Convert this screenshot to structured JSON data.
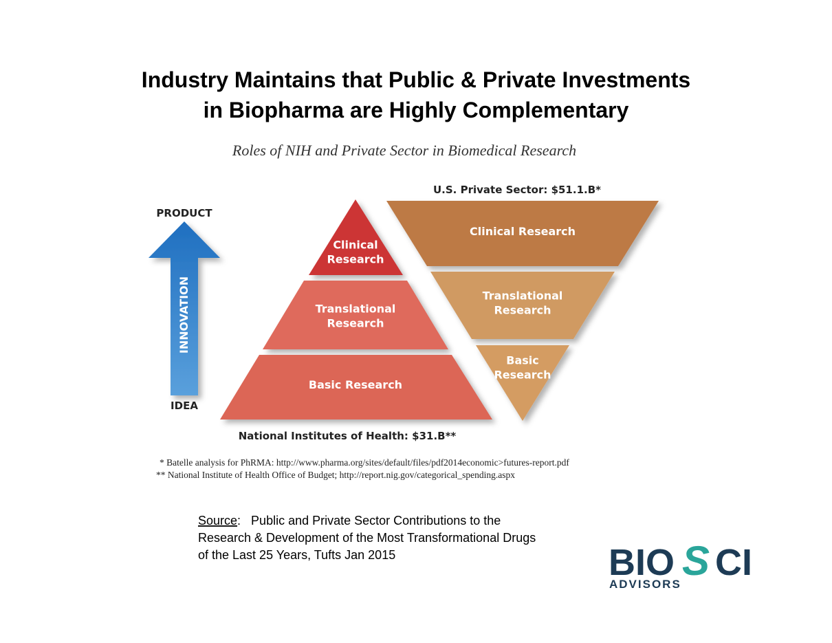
{
  "title_lines": [
    "Industry Maintains that Public & Private Investments",
    "in Biopharma are Highly Complementary"
  ],
  "figure": {
    "subtitle": "Roles of NIH and Private Sector in Biomedical Research",
    "arrow": {
      "top": "PRODUCT",
      "middle": "INNOVATION",
      "bottom": "IDEA"
    },
    "nih": {
      "caption": "National Institutes of Health: $31.B**",
      "layers": [
        [
          "Clinical",
          "Research"
        ],
        [
          "Translational",
          "Research"
        ],
        [
          "Basic Research"
        ]
      ]
    },
    "private": {
      "caption": "U.S. Private Sector: $51.1.B*",
      "layers": [
        [
          "Clinical Research"
        ],
        [
          "Translational",
          "Research"
        ],
        [
          "Basic",
          "Research"
        ]
      ]
    },
    "footnotes": [
      "* Batelle analysis for PhRMA: http://www.pharma.org/sites/default/files/pdf2014economic>futures-report.pdf",
      "** National Institute of Health Office of Budget; http://report.nig.gov/categorical_spending.aspx"
    ]
  },
  "source": {
    "label": "Source",
    "lines": [
      ":   Public and Private Sector Contributions to the",
      "Research & Development of the Most Transformational Drugs",
      "of the Last 25 Years, Tufts Jan 2015"
    ]
  },
  "logo": {
    "parts": [
      "BIO",
      "S",
      "CI"
    ],
    "tagline": "ADVISORS"
  }
}
